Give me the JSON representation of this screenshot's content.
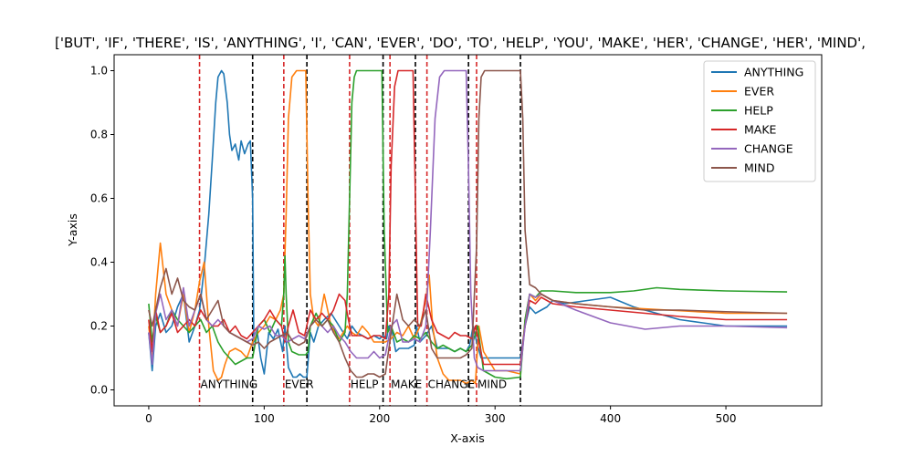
{
  "chart_data": {
    "type": "line",
    "title": "['BUT', 'IF', 'THERE', 'IS', 'ANYTHING', 'I', 'CAN', 'EVER', 'DO', 'TO', 'HELP', 'YOU', 'MAKE', 'HER', 'CHANGE', 'HER', 'MIND',",
    "xlabel": "X-axis",
    "ylabel": "Y-axis",
    "xlim": [
      -30,
      583
    ],
    "ylim": [
      -0.05,
      1.05
    ],
    "xticks": [
      0,
      100,
      200,
      300,
      400,
      500
    ],
    "yticks": [
      0.0,
      0.2,
      0.4,
      0.6,
      0.8,
      1.0
    ],
    "grid": false,
    "legend": "top-right",
    "series": [
      {
        "name": "ANYTHING",
        "color": "#1f77b4",
        "x": [
          0,
          3,
          6,
          10,
          15,
          20,
          25,
          30,
          35,
          40,
          44,
          48,
          52,
          55,
          58,
          60,
          63,
          65,
          68,
          70,
          72,
          75,
          78,
          80,
          83,
          86,
          88,
          90,
          91,
          94,
          97,
          100,
          104,
          108,
          112,
          116,
          118,
          121,
          125,
          128,
          131,
          134,
          137,
          140,
          143,
          147,
          152,
          158,
          165,
          172,
          176,
          180,
          185,
          190,
          195,
          200,
          203,
          206,
          208,
          211,
          214,
          217,
          220,
          225,
          230,
          232,
          235,
          240,
          245,
          250,
          255,
          260,
          265,
          270,
          275,
          278,
          281,
          284,
          288,
          295,
          305,
          315,
          322,
          326,
          330,
          335,
          340,
          345,
          350,
          360,
          380,
          400,
          420,
          440,
          460,
          480,
          500,
          520,
          553
        ],
        "y": [
          0.18,
          0.06,
          0.2,
          0.24,
          0.18,
          0.2,
          0.26,
          0.3,
          0.15,
          0.2,
          0.25,
          0.38,
          0.55,
          0.72,
          0.9,
          0.98,
          1.0,
          0.99,
          0.9,
          0.8,
          0.75,
          0.77,
          0.72,
          0.78,
          0.74,
          0.77,
          0.78,
          0.6,
          0.15,
          0.18,
          0.1,
          0.05,
          0.18,
          0.16,
          0.19,
          0.12,
          0.2,
          0.07,
          0.04,
          0.04,
          0.05,
          0.04,
          0.04,
          0.18,
          0.15,
          0.2,
          0.22,
          0.24,
          0.2,
          0.16,
          0.2,
          0.18,
          0.17,
          0.16,
          0.17,
          0.16,
          0.17,
          0.16,
          0.2,
          0.18,
          0.12,
          0.13,
          0.13,
          0.13,
          0.14,
          0.2,
          0.15,
          0.17,
          0.2,
          0.13,
          0.13,
          0.13,
          0.12,
          0.13,
          0.12,
          0.14,
          0.2,
          0.15,
          0.1,
          0.1,
          0.1,
          0.1,
          0.1,
          0.2,
          0.26,
          0.24,
          0.25,
          0.26,
          0.28,
          0.27,
          0.28,
          0.29,
          0.26,
          0.24,
          0.22,
          0.21,
          0.2,
          0.2,
          0.2
        ]
      },
      {
        "name": "EVER",
        "color": "#ff7f0e",
        "x": [
          0,
          3,
          6,
          10,
          15,
          20,
          25,
          30,
          35,
          40,
          44,
          48,
          52,
          56,
          60,
          63,
          66,
          70,
          75,
          80,
          85,
          90,
          95,
          100,
          105,
          110,
          114,
          117,
          119,
          121,
          124,
          128,
          132,
          136,
          138,
          140,
          143,
          147,
          152,
          158,
          165,
          172,
          176,
          180,
          185,
          190,
          195,
          200,
          205,
          210,
          215,
          220,
          225,
          230,
          235,
          240,
          243,
          246,
          250,
          255,
          260,
          265,
          270,
          275,
          280,
          283,
          286,
          290,
          300,
          310,
          322,
          326,
          330,
          335,
          340,
          350,
          370,
          400,
          450,
          500,
          553
        ],
        "y": [
          0.2,
          0.1,
          0.3,
          0.46,
          0.3,
          0.25,
          0.2,
          0.3,
          0.18,
          0.25,
          0.34,
          0.4,
          0.2,
          0.06,
          0.03,
          0.04,
          0.08,
          0.12,
          0.13,
          0.12,
          0.1,
          0.15,
          0.18,
          0.2,
          0.23,
          0.22,
          0.25,
          0.3,
          0.55,
          0.85,
          0.98,
          1.0,
          1.0,
          1.0,
          0.6,
          0.3,
          0.22,
          0.2,
          0.3,
          0.2,
          0.16,
          0.2,
          0.18,
          0.17,
          0.2,
          0.18,
          0.15,
          0.15,
          0.15,
          0.16,
          0.18,
          0.17,
          0.2,
          0.16,
          0.2,
          0.28,
          0.36,
          0.2,
          0.1,
          0.05,
          0.03,
          0.03,
          0.03,
          0.02,
          0.03,
          0.02,
          0.2,
          0.12,
          0.06,
          0.06,
          0.05,
          0.22,
          0.3,
          0.28,
          0.3,
          0.28,
          0.27,
          0.26,
          0.25,
          0.24,
          0.24
        ]
      },
      {
        "name": "HELP",
        "color": "#2ca02c",
        "x": [
          0,
          3,
          6,
          10,
          15,
          20,
          25,
          30,
          35,
          40,
          45,
          50,
          55,
          60,
          65,
          70,
          75,
          80,
          85,
          90,
          95,
          100,
          105,
          110,
          115,
          117,
          118,
          119,
          121,
          124,
          130,
          136,
          138,
          140,
          145,
          150,
          155,
          160,
          165,
          170,
          172,
          174,
          176,
          178,
          180,
          185,
          190,
          195,
          200,
          202,
          204,
          207,
          210,
          215,
          220,
          225,
          230,
          235,
          240,
          245,
          250,
          255,
          260,
          265,
          270,
          275,
          280,
          285,
          290,
          300,
          310,
          322,
          326,
          330,
          335,
          340,
          350,
          370,
          400,
          420,
          440,
          460,
          500,
          553
        ],
        "y": [
          0.27,
          0.15,
          0.23,
          0.18,
          0.2,
          0.25,
          0.22,
          0.2,
          0.18,
          0.2,
          0.22,
          0.18,
          0.2,
          0.15,
          0.12,
          0.1,
          0.08,
          0.09,
          0.1,
          0.1,
          0.2,
          0.22,
          0.18,
          0.22,
          0.2,
          0.3,
          0.42,
          0.3,
          0.15,
          0.12,
          0.11,
          0.11,
          0.12,
          0.2,
          0.24,
          0.2,
          0.22,
          0.2,
          0.15,
          0.18,
          0.3,
          0.6,
          0.9,
          0.98,
          1.0,
          1.0,
          1.0,
          1.0,
          1.0,
          1.0,
          0.5,
          0.18,
          0.2,
          0.15,
          0.16,
          0.15,
          0.17,
          0.16,
          0.18,
          0.15,
          0.13,
          0.14,
          0.13,
          0.12,
          0.13,
          0.12,
          0.14,
          0.2,
          0.06,
          0.04,
          0.035,
          0.04,
          0.22,
          0.3,
          0.29,
          0.31,
          0.31,
          0.305,
          0.305,
          0.31,
          0.32,
          0.315,
          0.31,
          0.307
        ]
      },
      {
        "name": "MAKE",
        "color": "#d62728",
        "x": [
          0,
          3,
          6,
          10,
          15,
          20,
          25,
          30,
          35,
          40,
          45,
          50,
          55,
          60,
          65,
          70,
          75,
          80,
          85,
          90,
          95,
          100,
          105,
          110,
          115,
          118,
          121,
          125,
          130,
          135,
          140,
          145,
          150,
          155,
          160,
          165,
          170,
          173,
          176,
          180,
          185,
          190,
          195,
          200,
          205,
          208,
          210,
          213,
          216,
          220,
          225,
          229,
          231,
          233,
          236,
          240,
          245,
          250,
          255,
          260,
          265,
          270,
          275,
          280,
          283,
          286,
          290,
          300,
          310,
          322,
          326,
          330,
          335,
          340,
          350,
          370,
          400,
          430,
          460,
          500,
          553
        ],
        "y": [
          0.22,
          0.12,
          0.25,
          0.18,
          0.2,
          0.24,
          0.18,
          0.2,
          0.22,
          0.2,
          0.25,
          0.22,
          0.2,
          0.2,
          0.22,
          0.18,
          0.2,
          0.17,
          0.16,
          0.18,
          0.2,
          0.22,
          0.25,
          0.22,
          0.2,
          0.15,
          0.2,
          0.25,
          0.18,
          0.17,
          0.25,
          0.22,
          0.24,
          0.22,
          0.25,
          0.3,
          0.28,
          0.22,
          0.17,
          0.17,
          0.17,
          0.16,
          0.17,
          0.17,
          0.16,
          0.3,
          0.7,
          0.95,
          1.0,
          1.0,
          1.0,
          1.0,
          0.6,
          0.2,
          0.2,
          0.3,
          0.22,
          0.18,
          0.17,
          0.16,
          0.18,
          0.17,
          0.17,
          0.16,
          0.2,
          0.15,
          0.08,
          0.08,
          0.08,
          0.08,
          0.2,
          0.28,
          0.27,
          0.29,
          0.27,
          0.26,
          0.25,
          0.24,
          0.23,
          0.22,
          0.22
        ]
      },
      {
        "name": "CHANGE",
        "color": "#9467bd",
        "x": [
          0,
          3,
          6,
          10,
          15,
          20,
          25,
          30,
          35,
          40,
          45,
          50,
          55,
          60,
          65,
          70,
          75,
          80,
          85,
          90,
          95,
          100,
          105,
          110,
          115,
          120,
          125,
          130,
          135,
          140,
          145,
          150,
          155,
          160,
          165,
          170,
          175,
          180,
          185,
          190,
          195,
          200,
          205,
          210,
          215,
          220,
          225,
          230,
          235,
          240,
          244,
          248,
          252,
          256,
          260,
          265,
          270,
          275,
          277,
          279,
          282,
          285,
          290,
          300,
          310,
          322,
          326,
          330,
          335,
          340,
          350,
          370,
          400,
          430,
          460,
          500,
          553
        ],
        "y": [
          0.18,
          0.08,
          0.24,
          0.3,
          0.22,
          0.25,
          0.2,
          0.32,
          0.2,
          0.25,
          0.3,
          0.22,
          0.2,
          0.22,
          0.2,
          0.18,
          0.17,
          0.16,
          0.15,
          0.16,
          0.2,
          0.19,
          0.2,
          0.17,
          0.17,
          0.15,
          0.16,
          0.17,
          0.16,
          0.2,
          0.22,
          0.2,
          0.18,
          0.2,
          0.17,
          0.15,
          0.12,
          0.1,
          0.1,
          0.1,
          0.12,
          0.1,
          0.11,
          0.2,
          0.22,
          0.15,
          0.15,
          0.16,
          0.15,
          0.2,
          0.5,
          0.85,
          0.98,
          1.0,
          1.0,
          1.0,
          1.0,
          1.0,
          0.7,
          0.3,
          0.1,
          0.07,
          0.06,
          0.06,
          0.06,
          0.06,
          0.2,
          0.3,
          0.29,
          0.3,
          0.28,
          0.25,
          0.21,
          0.19,
          0.2,
          0.2,
          0.195
        ]
      },
      {
        "name": "MIND",
        "color": "#8c564b",
        "x": [
          0,
          3,
          6,
          10,
          15,
          20,
          25,
          30,
          35,
          40,
          45,
          50,
          55,
          60,
          65,
          70,
          75,
          80,
          85,
          90,
          95,
          100,
          105,
          110,
          115,
          120,
          125,
          130,
          135,
          140,
          145,
          150,
          155,
          160,
          165,
          170,
          175,
          180,
          185,
          190,
          195,
          200,
          205,
          210,
          215,
          220,
          225,
          230,
          235,
          240,
          245,
          250,
          255,
          260,
          265,
          270,
          275,
          280,
          284,
          286,
          288,
          291,
          295,
          300,
          305,
          310,
          315,
          320,
          322,
          324,
          326,
          330,
          335,
          340,
          350,
          370,
          400,
          430,
          460,
          500,
          553
        ],
        "y": [
          0.25,
          0.2,
          0.25,
          0.32,
          0.38,
          0.3,
          0.35,
          0.28,
          0.26,
          0.25,
          0.3,
          0.22,
          0.25,
          0.28,
          0.2,
          0.18,
          0.17,
          0.16,
          0.15,
          0.14,
          0.15,
          0.13,
          0.15,
          0.16,
          0.17,
          0.18,
          0.15,
          0.14,
          0.15,
          0.2,
          0.22,
          0.2,
          0.22,
          0.18,
          0.15,
          0.1,
          0.06,
          0.04,
          0.04,
          0.05,
          0.05,
          0.04,
          0.05,
          0.18,
          0.3,
          0.22,
          0.2,
          0.22,
          0.2,
          0.25,
          0.13,
          0.1,
          0.1,
          0.1,
          0.1,
          0.1,
          0.11,
          0.13,
          0.45,
          0.85,
          0.98,
          1.0,
          1.0,
          1.0,
          1.0,
          1.0,
          1.0,
          1.0,
          1.0,
          0.85,
          0.5,
          0.33,
          0.32,
          0.3,
          0.28,
          0.27,
          0.26,
          0.25,
          0.25,
          0.245,
          0.24
        ]
      }
    ],
    "vlines": [
      {
        "x": 44,
        "color": "#d62728",
        "style": "dashed"
      },
      {
        "x": 90,
        "color": "#000000",
        "style": "dashed"
      },
      {
        "x": 117,
        "color": "#d62728",
        "style": "dashed"
      },
      {
        "x": 137,
        "color": "#000000",
        "style": "dashed"
      },
      {
        "x": 174,
        "color": "#d62728",
        "style": "dashed"
      },
      {
        "x": 203,
        "color": "#000000",
        "style": "dashed"
      },
      {
        "x": 209,
        "color": "#d62728",
        "style": "dashed"
      },
      {
        "x": 231,
        "color": "#000000",
        "style": "dashed"
      },
      {
        "x": 241,
        "color": "#d62728",
        "style": "dashed"
      },
      {
        "x": 277,
        "color": "#000000",
        "style": "dashed"
      },
      {
        "x": 284,
        "color": "#d62728",
        "style": "dashed"
      },
      {
        "x": 322,
        "color": "#000000",
        "style": "dashed"
      }
    ],
    "annotations": [
      {
        "text": "ANYTHING",
        "x": 44,
        "y": 0.0
      },
      {
        "text": "EVER",
        "x": 117,
        "y": 0.0
      },
      {
        "text": "HELP",
        "x": 174,
        "y": 0.0
      },
      {
        "text": "MAKE",
        "x": 209,
        "y": 0.0
      },
      {
        "text": "CHANGE",
        "x": 241,
        "y": 0.0
      },
      {
        "text": "MIND",
        "x": 284,
        "y": 0.0
      }
    ]
  }
}
